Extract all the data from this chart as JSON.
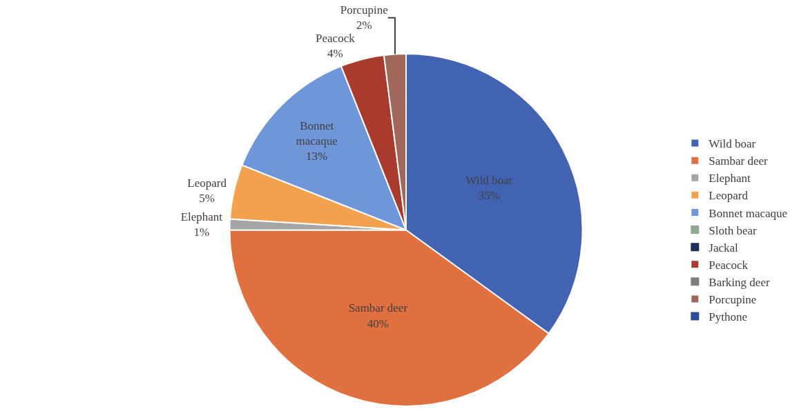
{
  "chart_data": {
    "type": "pie",
    "categories": [
      "Wild boar",
      "Sambar deer",
      "Elephant",
      "Leopard",
      "Bonnet macaque",
      "Sloth bear",
      "Jackal",
      "Peacock",
      "Barking deer",
      "Porcupine",
      "Pythone"
    ],
    "values": [
      35,
      40,
      1,
      5,
      13,
      0,
      0,
      4,
      0,
      2,
      0
    ],
    "value_labels": [
      "35%",
      "40%",
      "1%",
      "5%",
      "13%",
      null,
      null,
      "4%",
      null,
      "2%",
      null
    ],
    "colors": [
      "#4262b2",
      "#e0703f",
      "#a5a5a5",
      "#f2a24e",
      "#6f96d8",
      "#8fa890",
      "#1f2d5c",
      "#a83a2e",
      "#7f7f7f",
      "#a0685a",
      "#2c4c9a"
    ],
    "legend": "right"
  }
}
